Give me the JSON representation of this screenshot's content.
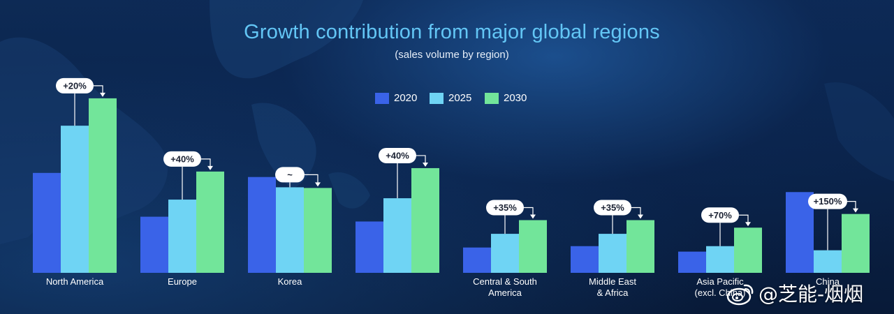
{
  "title": "Growth contribution from major global regions",
  "subtitle": "(sales volume by region)",
  "watermark": "@芝能-烟烟",
  "chart_data": {
    "type": "bar",
    "categories": [
      "North America",
      "Europe",
      "Korea",
      "",
      "Central & South America",
      "Middle East & Africa",
      "Asia Pacific (excl. China)",
      "China"
    ],
    "series": [
      {
        "name": "2020",
        "color": "#3a63e8",
        "values": [
          146,
          82,
          140,
          75,
          37,
          39,
          31,
          118
        ]
      },
      {
        "name": "2025",
        "color": "#6fd4f4",
        "values": [
          215,
          107,
          125,
          109,
          57,
          57,
          39,
          33
        ]
      },
      {
        "name": "2030",
        "color": "#72e59a",
        "values": [
          255,
          148,
          124,
          153,
          77,
          77,
          66,
          86
        ]
      }
    ],
    "annotations": [
      "+20%",
      "+40%",
      "~",
      "+40%",
      "+35%",
      "+35%",
      "+70%",
      "+150%"
    ],
    "legend_position": "top-center",
    "grid": false,
    "ylim": [
      0,
      260
    ]
  }
}
